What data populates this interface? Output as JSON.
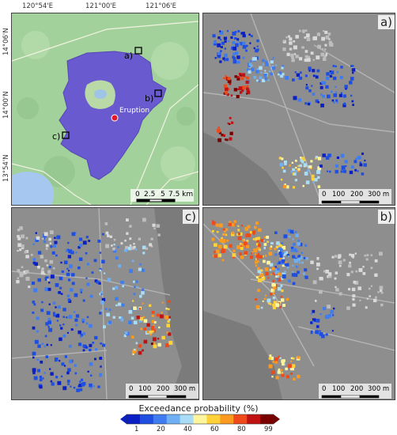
{
  "overview": {
    "lon_ticks": [
      "120°54'E",
      "121°00'E",
      "121°06'E"
    ],
    "lat_ticks": [
      "14°06'N",
      "14°00'N",
      "13°54'N"
    ],
    "eruption_label": "Eruption",
    "markers": [
      "a)",
      "b)",
      "c)"
    ],
    "scale_labels": [
      "0",
      "2.5",
      "5",
      "7.5 km"
    ]
  },
  "panels": [
    {
      "id": "a",
      "label": "a)",
      "scale_labels": [
        "0",
        "100",
        "200",
        "300 m"
      ]
    },
    {
      "id": "c",
      "label": "c)",
      "scale_labels": [
        "0",
        "100",
        "200",
        "300 m"
      ]
    },
    {
      "id": "b",
      "label": "b)",
      "scale_labels": [
        "0",
        "100",
        "200",
        "300 m"
      ]
    }
  ],
  "legend": {
    "title": "Exceedance probability (%)",
    "ticks": [
      "1",
      "20",
      "40",
      "60",
      "80",
      "99"
    ],
    "colors": [
      "#0a1fc4",
      "#1e4fe0",
      "#3f7cf0",
      "#6fb0f5",
      "#a9dcf5",
      "#fff59d",
      "#ffd23a",
      "#fb9a1e",
      "#ee4a1a",
      "#c01212",
      "#7a0000"
    ]
  },
  "colors": {
    "land": "#9fcf9a",
    "water": "#a6c8f0",
    "hazard": "#6556c9",
    "map_gray": "#8c8c8c",
    "eruption": "#e3192b"
  }
}
